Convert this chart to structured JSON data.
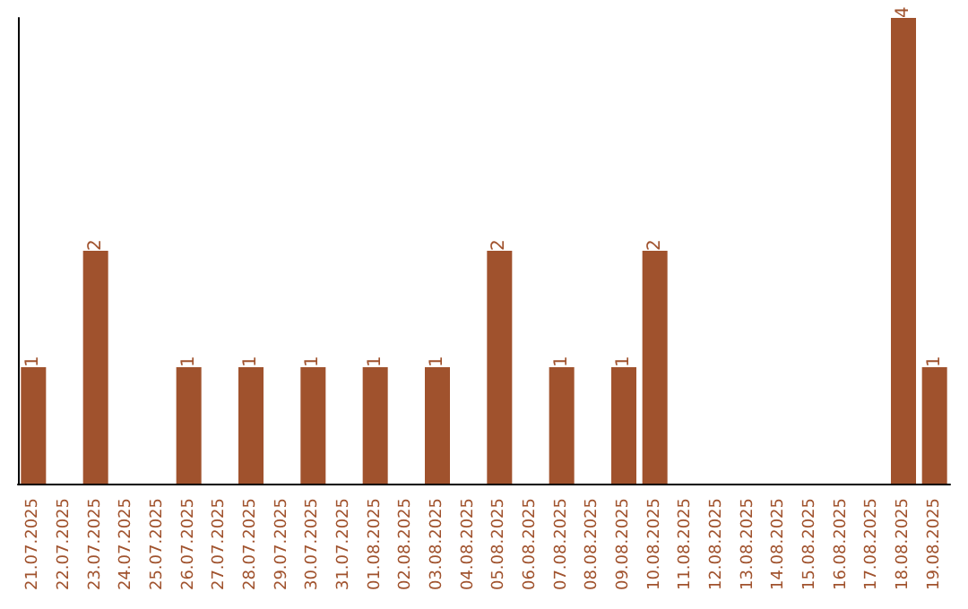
{
  "chart_data": {
    "type": "bar",
    "categories": [
      "21.07.2025",
      "22.07.2025",
      "23.07.2025",
      "24.07.2025",
      "25.07.2025",
      "26.07.2025",
      "27.07.2025",
      "28.07.2025",
      "29.07.2025",
      "30.07.2025",
      "31.07.2025",
      "01.08.2025",
      "02.08.2025",
      "03.08.2025",
      "04.08.2025",
      "05.08.2025",
      "06.08.2025",
      "07.08.2025",
      "08.08.2025",
      "09.08.2025",
      "10.08.2025",
      "11.08.2025",
      "12.08.2025",
      "13.08.2025",
      "14.08.2025",
      "15.08.2025",
      "16.08.2025",
      "17.08.2025",
      "18.08.2025",
      "19.08.2025"
    ],
    "values": [
      1,
      0,
      2,
      0,
      0,
      1,
      0,
      1,
      0,
      1,
      0,
      1,
      0,
      1,
      0,
      2,
      0,
      1,
      0,
      1,
      2,
      0,
      0,
      0,
      0,
      0,
      0,
      0,
      4,
      1
    ],
    "value_labels": [
      "1",
      null,
      "2",
      null,
      null,
      "1",
      null,
      "1",
      null,
      "1",
      null,
      "1",
      null,
      "1",
      null,
      "2",
      null,
      "1",
      null,
      "1",
      "2",
      null,
      null,
      null,
      null,
      null,
      null,
      null,
      "4",
      "1"
    ],
    "color": "#a0522d",
    "tick_labels": "x"
  }
}
